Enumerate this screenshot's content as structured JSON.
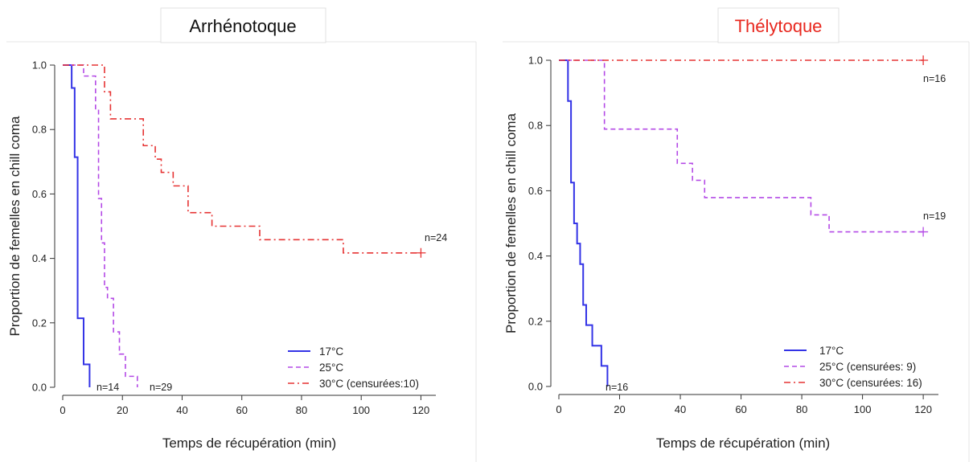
{
  "chart_data": [
    {
      "type": "line",
      "title": "Arrhénotoque",
      "title_color": "#111111",
      "xlabel": "Temps de récupération (min)",
      "ylabel": "Proportion de femelles en chill coma",
      "xlim": [
        0,
        125
      ],
      "ylim": [
        0,
        1.0
      ],
      "xticks": [
        "0",
        "20",
        "40",
        "60",
        "80",
        "100",
        "120"
      ],
      "yticks": [
        "0.0",
        "0.2",
        "0.4",
        "0.6",
        "0.8",
        "1.0"
      ],
      "grid": false,
      "legend_position": "bottom-right",
      "series": [
        {
          "name": "17°C",
          "color": "#3333e6",
          "style": "solid",
          "x": [
            0,
            3,
            4,
            5,
            6,
            7,
            9
          ],
          "y": [
            1.0,
            0.929,
            0.714,
            0.214,
            0.214,
            0.071,
            0.0
          ],
          "n_label": "n=14"
        },
        {
          "name": "25°C",
          "color": "#b44ae6",
          "style": "dashed",
          "x": [
            0,
            7,
            11,
            12,
            13,
            14,
            15,
            17,
            19,
            21,
            23,
            25
          ],
          "y": [
            1.0,
            0.966,
            0.862,
            0.586,
            0.448,
            0.31,
            0.276,
            0.172,
            0.103,
            0.034,
            0.034,
            0.0
          ],
          "n_label": "n=29"
        },
        {
          "name": "30°C (censurées:10)",
          "color": "#e63333",
          "style": "dashdot",
          "x": [
            0,
            14,
            16,
            27,
            31,
            33,
            37,
            42,
            50,
            66,
            94,
            120
          ],
          "y": [
            1.0,
            0.917,
            0.833,
            0.75,
            0.708,
            0.667,
            0.625,
            0.542,
            0.5,
            0.458,
            0.417,
            0.417
          ],
          "censor_x": 120,
          "n_label": "n=24"
        }
      ]
    },
    {
      "type": "line",
      "title": "Thélytoque",
      "title_color": "#e8271e",
      "xlabel": "Temps de récupération (min)",
      "ylabel": "Proportion de femelles en chill coma",
      "xlim": [
        0,
        125
      ],
      "ylim": [
        0,
        1.0
      ],
      "xticks": [
        "0",
        "20",
        "40",
        "60",
        "80",
        "100",
        "120"
      ],
      "yticks": [
        "0.0",
        "0.2",
        "0.4",
        "0.6",
        "0.8",
        "1.0"
      ],
      "grid": false,
      "legend_position": "bottom-right",
      "series": [
        {
          "name": "17°C",
          "color": "#3333e6",
          "style": "solid",
          "x": [
            0,
            3,
            4,
            5,
            6,
            7,
            8,
            9,
            11,
            14,
            16
          ],
          "y": [
            1.0,
            0.875,
            0.625,
            0.5,
            0.438,
            0.375,
            0.25,
            0.188,
            0.125,
            0.063,
            0.0
          ],
          "n_label": "n=16"
        },
        {
          "name": "25°C (censurées: 9)",
          "color": "#b44ae6",
          "style": "dashed",
          "x": [
            0,
            15,
            39,
            44,
            48,
            83,
            89,
            120
          ],
          "y": [
            1.0,
            0.789,
            0.684,
            0.632,
            0.579,
            0.526,
            0.474,
            0.474
          ],
          "censor_x": 120,
          "n_label": "n=19"
        },
        {
          "name": "30°C (censurées: 16)",
          "color": "#e63333",
          "style": "dashdot",
          "x": [
            0,
            120
          ],
          "y": [
            1.0,
            1.0
          ],
          "censor_x": 120,
          "n_label": "n=16"
        }
      ]
    }
  ]
}
